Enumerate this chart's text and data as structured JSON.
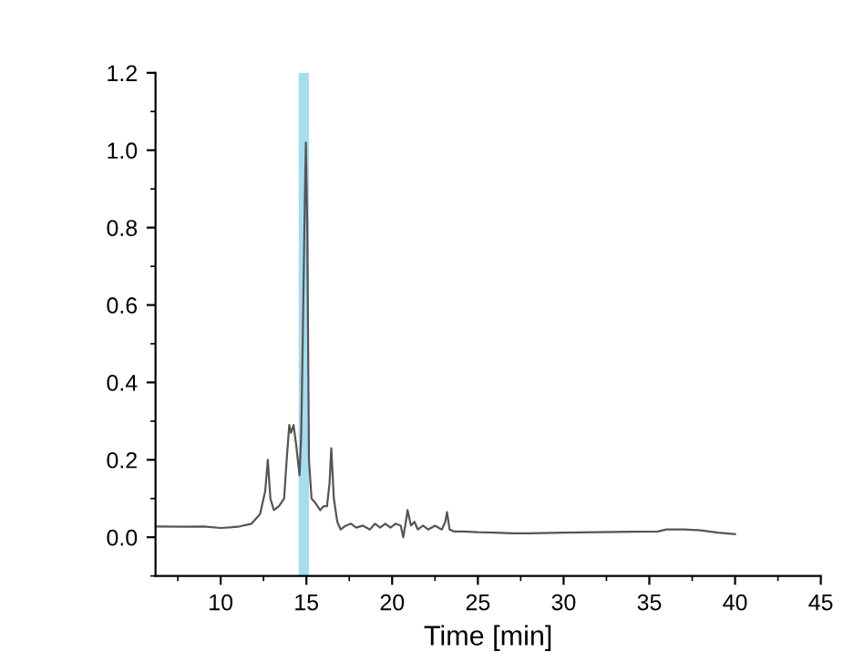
{
  "chart_data": {
    "type": "line",
    "xlabel": "Time [min]",
    "xlim": [
      6.2,
      45
    ],
    "xticks": [
      10,
      15,
      20,
      25,
      30,
      35,
      40,
      45
    ],
    "ylim": [
      -0.1,
      1.2
    ],
    "yticks": [
      {
        "value": 0,
        "label": "0.0"
      },
      {
        "value": 0.2,
        "label": "0.2"
      },
      {
        "value": 0.4,
        "label": "0.4"
      },
      {
        "value": 0.6,
        "label": "0.6"
      },
      {
        "value": 0.8,
        "label": "0.8"
      },
      {
        "value": 1.0,
        "label": "1.0"
      },
      {
        "value": 1.2,
        "label": "1.2"
      }
    ],
    "grid": false,
    "legend": false,
    "marker": "none",
    "line_style": "solid",
    "bands": [
      {
        "axis": "x",
        "from": 14.55,
        "to": 15.15,
        "color": "#a8dcef"
      }
    ],
    "series": [
      {
        "color": "#555555",
        "x": [
          6.2,
          8,
          9,
          10,
          11,
          11.8,
          12.3,
          12.6,
          12.75,
          12.9,
          13.1,
          13.4,
          13.7,
          13.85,
          14.0,
          14.1,
          14.25,
          14.4,
          14.5,
          14.6,
          14.7,
          14.8,
          14.9,
          14.97,
          15.05,
          15.15,
          15.3,
          15.5,
          15.8,
          16.0,
          16.2,
          16.35,
          16.45,
          16.6,
          16.8,
          17.0,
          17.3,
          17.6,
          17.9,
          18.3,
          18.7,
          19.0,
          19.3,
          19.6,
          19.9,
          20.2,
          20.5,
          20.65,
          20.8,
          20.9,
          21.1,
          21.3,
          21.5,
          21.8,
          22.1,
          22.5,
          22.9,
          23.1,
          23.2,
          23.35,
          23.6,
          24.0,
          25,
          26,
          27,
          28,
          30,
          32,
          34,
          35.5,
          36,
          37,
          38,
          39,
          40
        ],
        "values": [
          0.028,
          0.027,
          0.028,
          0.024,
          0.027,
          0.035,
          0.06,
          0.12,
          0.2,
          0.1,
          0.07,
          0.08,
          0.1,
          0.2,
          0.29,
          0.27,
          0.29,
          0.24,
          0.2,
          0.16,
          0.27,
          0.55,
          0.85,
          1.02,
          0.8,
          0.2,
          0.1,
          0.09,
          0.07,
          0.08,
          0.08,
          0.14,
          0.23,
          0.1,
          0.04,
          0.02,
          0.03,
          0.035,
          0.025,
          0.03,
          0.02,
          0.035,
          0.025,
          0.035,
          0.025,
          0.035,
          0.03,
          0.0,
          0.04,
          0.07,
          0.03,
          0.04,
          0.02,
          0.03,
          0.02,
          0.03,
          0.02,
          0.04,
          0.065,
          0.02,
          0.015,
          0.015,
          0.013,
          0.012,
          0.01,
          0.01,
          0.012,
          0.013,
          0.014,
          0.015,
          0.02,
          0.02,
          0.018,
          0.012,
          0.008
        ]
      }
    ]
  }
}
